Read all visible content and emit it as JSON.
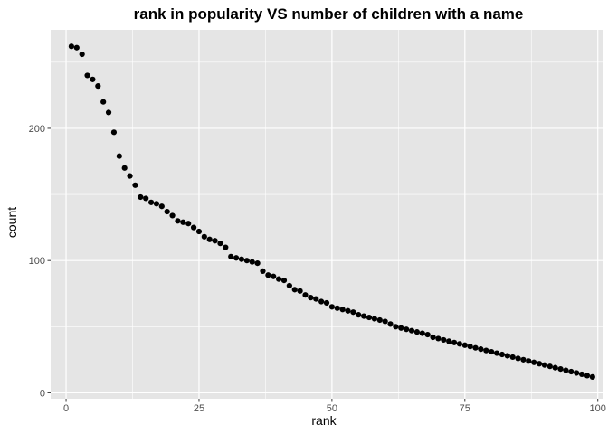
{
  "chart_data": {
    "type": "scatter",
    "title": "rank in popularity VS number of children with a name",
    "xlabel": "rank",
    "ylabel": "count",
    "xlim": [
      -2.9,
      100.9
    ],
    "ylim": [
      -4.5,
      274.5
    ],
    "xticks": [
      0,
      25,
      50,
      75,
      100
    ],
    "xtick_labels": [
      "0",
      "25",
      "50",
      "75",
      "100"
    ],
    "yticks": [
      0,
      100,
      200
    ],
    "ytick_labels": [
      "0",
      "100",
      "200"
    ],
    "grid": true,
    "colors": {
      "panel": "#e5e5e5",
      "grid": "#ffffff",
      "point": "#000000",
      "tick_label": "#4d4d4d"
    },
    "x": [
      1,
      2,
      3,
      4,
      5,
      6,
      7,
      8,
      9,
      10,
      11,
      12,
      13,
      14,
      15,
      16,
      17,
      18,
      19,
      20,
      21,
      22,
      23,
      24,
      25,
      26,
      27,
      28,
      29,
      30,
      31,
      32,
      33,
      34,
      35,
      36,
      37,
      38,
      39,
      40,
      41,
      42,
      43,
      44,
      45,
      46,
      47,
      48,
      49,
      50,
      51,
      52,
      53,
      54,
      55,
      56,
      57,
      58,
      59,
      60,
      61,
      62,
      63,
      64,
      65,
      66,
      67,
      68,
      69,
      70,
      71,
      72,
      73,
      74,
      75,
      76,
      77,
      78,
      79,
      80,
      81,
      82,
      83,
      84,
      85,
      86,
      87,
      88,
      89,
      90,
      91,
      92,
      93,
      94,
      95,
      96,
      97,
      98,
      99
    ],
    "y": [
      262,
      261,
      256,
      240,
      237,
      232,
      220,
      212,
      197,
      179,
      170,
      164,
      157,
      148,
      147,
      144,
      143,
      141,
      137,
      134,
      130,
      129,
      128,
      125,
      122,
      118,
      116,
      115,
      113,
      110,
      103,
      102,
      101,
      100,
      99,
      98,
      92,
      89,
      88,
      86,
      85,
      81,
      78,
      77,
      74,
      72,
      71,
      69,
      68,
      65,
      64,
      63,
      62,
      61,
      59,
      58,
      57,
      56,
      55,
      54,
      52,
      50,
      49,
      48,
      47,
      46,
      45,
      44,
      42,
      41,
      40,
      39,
      38,
      37,
      36,
      35,
      34,
      33,
      32,
      31,
      30,
      29,
      28,
      27,
      26,
      25,
      24,
      23,
      22,
      21,
      20,
      19,
      18,
      17,
      16,
      15,
      14,
      13,
      12
    ]
  }
}
